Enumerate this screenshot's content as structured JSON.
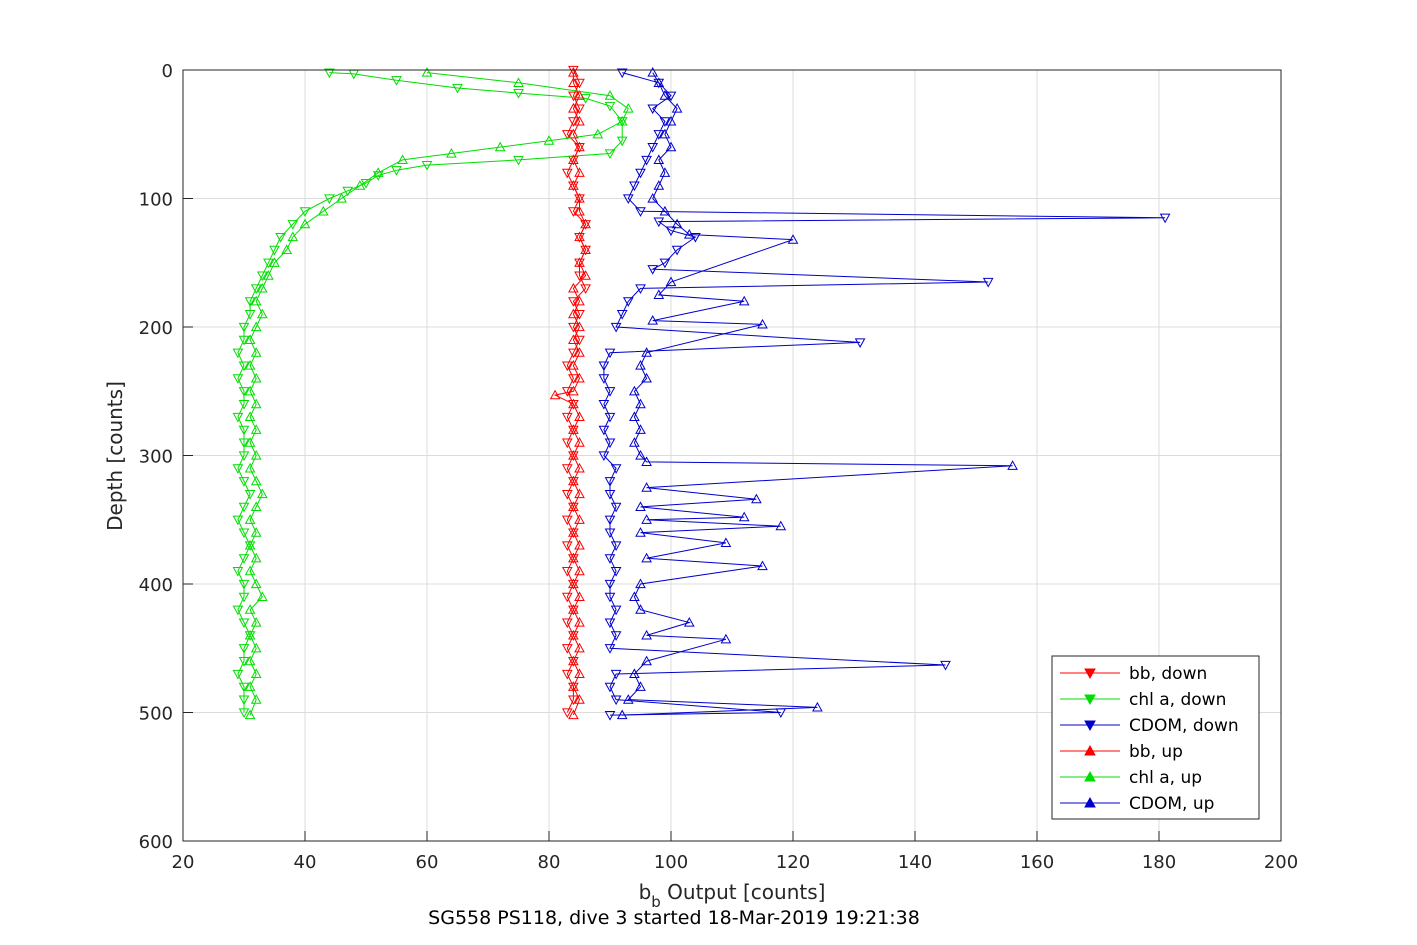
{
  "chart_data": {
    "type": "line",
    "title": "",
    "caption": "SG558 PS118, dive 3 started 18-Mar-2019 19:21:38",
    "xlabel_main": "b",
    "xlabel_sub": "b",
    "xlabel_rest": " Output [counts]",
    "ylabel": "Depth [counts]",
    "xlim": [
      20,
      200
    ],
    "ylim": [
      0,
      600
    ],
    "y_reversed": true,
    "grid": true,
    "xticks": [
      "20",
      "40",
      "60",
      "80",
      "100",
      "120",
      "140",
      "160",
      "180",
      "200"
    ],
    "yticks": [
      "0",
      "100",
      "200",
      "300",
      "400",
      "500",
      "600"
    ],
    "legend_position": "bottom-right",
    "series": [
      {
        "name": "bb, down",
        "color": "#ff0000",
        "marker": "triangle-down",
        "points": [
          [
            84,
            0
          ],
          [
            85,
            10
          ],
          [
            84,
            20
          ],
          [
            85,
            30
          ],
          [
            84,
            40
          ],
          [
            83,
            50
          ],
          [
            85,
            60
          ],
          [
            84,
            70
          ],
          [
            83,
            80
          ],
          [
            84,
            90
          ],
          [
            85,
            100
          ],
          [
            84,
            110
          ],
          [
            86,
            120
          ],
          [
            85,
            130
          ],
          [
            86,
            140
          ],
          [
            85,
            150
          ],
          [
            85,
            160
          ],
          [
            86,
            170
          ],
          [
            84,
            180
          ],
          [
            85,
            190
          ],
          [
            84,
            200
          ],
          [
            85,
            210
          ],
          [
            84,
            220
          ],
          [
            83,
            230
          ],
          [
            84,
            240
          ],
          [
            83,
            250
          ],
          [
            84,
            260
          ],
          [
            83,
            270
          ],
          [
            84,
            280
          ],
          [
            83,
            290
          ],
          [
            84,
            300
          ],
          [
            83,
            310
          ],
          [
            84,
            320
          ],
          [
            83,
            330
          ],
          [
            84,
            340
          ],
          [
            83,
            350
          ],
          [
            84,
            360
          ],
          [
            83,
            370
          ],
          [
            84,
            380
          ],
          [
            83,
            390
          ],
          [
            84,
            400
          ],
          [
            83,
            410
          ],
          [
            84,
            420
          ],
          [
            83,
            430
          ],
          [
            84,
            440
          ],
          [
            83,
            450
          ],
          [
            84,
            460
          ],
          [
            83,
            470
          ],
          [
            84,
            480
          ],
          [
            84,
            490
          ],
          [
            83,
            500
          ]
        ]
      },
      {
        "name": "chl a, down",
        "color": "#00dd00",
        "marker": "triangle-down",
        "points": [
          [
            44,
            2
          ],
          [
            48,
            3
          ],
          [
            55,
            8
          ],
          [
            65,
            14
          ],
          [
            75,
            18
          ],
          [
            86,
            22
          ],
          [
            90,
            28
          ],
          [
            92,
            40
          ],
          [
            92,
            55
          ],
          [
            90,
            65
          ],
          [
            75,
            70
          ],
          [
            60,
            74
          ],
          [
            55,
            78
          ],
          [
            52,
            82
          ],
          [
            50,
            88
          ],
          [
            47,
            94
          ],
          [
            44,
            100
          ],
          [
            40,
            110
          ],
          [
            38,
            120
          ],
          [
            36,
            130
          ],
          [
            35,
            140
          ],
          [
            34,
            150
          ],
          [
            33,
            160
          ],
          [
            32,
            170
          ],
          [
            31,
            180
          ],
          [
            31,
            190
          ],
          [
            30,
            200
          ],
          [
            30,
            210
          ],
          [
            29,
            220
          ],
          [
            30,
            230
          ],
          [
            29,
            240
          ],
          [
            30,
            250
          ],
          [
            30,
            260
          ],
          [
            29,
            270
          ],
          [
            30,
            280
          ],
          [
            30,
            290
          ],
          [
            30,
            300
          ],
          [
            29,
            310
          ],
          [
            30,
            320
          ],
          [
            31,
            330
          ],
          [
            30,
            340
          ],
          [
            29,
            350
          ],
          [
            30,
            360
          ],
          [
            31,
            370
          ],
          [
            30,
            380
          ],
          [
            29,
            390
          ],
          [
            30,
            400
          ],
          [
            30,
            410
          ],
          [
            29,
            420
          ],
          [
            30,
            430
          ],
          [
            31,
            440
          ],
          [
            30,
            450
          ],
          [
            30,
            460
          ],
          [
            29,
            470
          ],
          [
            30,
            480
          ],
          [
            30,
            490
          ],
          [
            30,
            500
          ]
        ]
      },
      {
        "name": "CDOM, down",
        "color": "#0000cc",
        "marker": "triangle-down",
        "points": [
          [
            92,
            2
          ],
          [
            98,
            10
          ],
          [
            100,
            20
          ],
          [
            97,
            30
          ],
          [
            99,
            40
          ],
          [
            98,
            50
          ],
          [
            97,
            60
          ],
          [
            96,
            70
          ],
          [
            95,
            80
          ],
          [
            94,
            90
          ],
          [
            93,
            100
          ],
          [
            95,
            110
          ],
          [
            181,
            115
          ],
          [
            98,
            118
          ],
          [
            100,
            125
          ],
          [
            104,
            130
          ],
          [
            101,
            140
          ],
          [
            99,
            150
          ],
          [
            97,
            155
          ],
          [
            152,
            165
          ],
          [
            95,
            170
          ],
          [
            93,
            180
          ],
          [
            92,
            190
          ],
          [
            91,
            200
          ],
          [
            131,
            212
          ],
          [
            90,
            220
          ],
          [
            89,
            230
          ],
          [
            89,
            240
          ],
          [
            90,
            250
          ],
          [
            89,
            260
          ],
          [
            90,
            270
          ],
          [
            89,
            280
          ],
          [
            90,
            290
          ],
          [
            89,
            300
          ],
          [
            91,
            310
          ],
          [
            90,
            320
          ],
          [
            90,
            330
          ],
          [
            91,
            340
          ],
          [
            90,
            350
          ],
          [
            90,
            360
          ],
          [
            91,
            370
          ],
          [
            90,
            380
          ],
          [
            91,
            390
          ],
          [
            90,
            400
          ],
          [
            90,
            410
          ],
          [
            91,
            420
          ],
          [
            90,
            430
          ],
          [
            91,
            440
          ],
          [
            90,
            450
          ],
          [
            145,
            463
          ],
          [
            91,
            470
          ],
          [
            90,
            480
          ],
          [
            91,
            490
          ],
          [
            118,
            500
          ],
          [
            90,
            502
          ]
        ]
      },
      {
        "name": "bb, up",
        "color": "#ff0000",
        "marker": "triangle-up",
        "points": [
          [
            84,
            502
          ],
          [
            85,
            490
          ],
          [
            84,
            480
          ],
          [
            85,
            470
          ],
          [
            84,
            460
          ],
          [
            85,
            450
          ],
          [
            84,
            440
          ],
          [
            85,
            430
          ],
          [
            84,
            420
          ],
          [
            85,
            410
          ],
          [
            84,
            400
          ],
          [
            85,
            390
          ],
          [
            84,
            380
          ],
          [
            85,
            370
          ],
          [
            84,
            360
          ],
          [
            85,
            350
          ],
          [
            84,
            340
          ],
          [
            85,
            330
          ],
          [
            84,
            320
          ],
          [
            85,
            310
          ],
          [
            84,
            300
          ],
          [
            85,
            290
          ],
          [
            84,
            280
          ],
          [
            85,
            270
          ],
          [
            84,
            260
          ],
          [
            81,
            253
          ],
          [
            84,
            250
          ],
          [
            85,
            240
          ],
          [
            84,
            230
          ],
          [
            85,
            220
          ],
          [
            84,
            210
          ],
          [
            85,
            200
          ],
          [
            84,
            190
          ],
          [
            85,
            180
          ],
          [
            84,
            170
          ],
          [
            86,
            160
          ],
          [
            85,
            150
          ],
          [
            86,
            140
          ],
          [
            85,
            130
          ],
          [
            86,
            120
          ],
          [
            85,
            110
          ],
          [
            85,
            100
          ],
          [
            84,
            90
          ],
          [
            85,
            80
          ],
          [
            84,
            70
          ],
          [
            85,
            60
          ],
          [
            84,
            50
          ],
          [
            85,
            40
          ],
          [
            84,
            30
          ],
          [
            85,
            20
          ],
          [
            84,
            10
          ],
          [
            84,
            2
          ]
        ]
      },
      {
        "name": "chl a, up",
        "color": "#00dd00",
        "marker": "triangle-up",
        "points": [
          [
            31,
            502
          ],
          [
            32,
            490
          ],
          [
            31,
            480
          ],
          [
            32,
            470
          ],
          [
            31,
            460
          ],
          [
            32,
            450
          ],
          [
            31,
            440
          ],
          [
            32,
            430
          ],
          [
            31,
            420
          ],
          [
            33,
            410
          ],
          [
            32,
            400
          ],
          [
            31,
            390
          ],
          [
            32,
            380
          ],
          [
            31,
            370
          ],
          [
            32,
            360
          ],
          [
            31,
            350
          ],
          [
            32,
            340
          ],
          [
            33,
            330
          ],
          [
            32,
            320
          ],
          [
            31,
            310
          ],
          [
            32,
            300
          ],
          [
            31,
            290
          ],
          [
            32,
            280
          ],
          [
            31,
            270
          ],
          [
            32,
            260
          ],
          [
            31,
            250
          ],
          [
            32,
            240
          ],
          [
            31,
            230
          ],
          [
            32,
            220
          ],
          [
            31,
            210
          ],
          [
            32,
            200
          ],
          [
            33,
            190
          ],
          [
            32,
            180
          ],
          [
            33,
            170
          ],
          [
            34,
            160
          ],
          [
            35,
            150
          ],
          [
            37,
            140
          ],
          [
            38,
            130
          ],
          [
            40,
            120
          ],
          [
            43,
            110
          ],
          [
            46,
            100
          ],
          [
            49,
            90
          ],
          [
            52,
            80
          ],
          [
            56,
            70
          ],
          [
            64,
            65
          ],
          [
            72,
            60
          ],
          [
            80,
            55
          ],
          [
            88,
            50
          ],
          [
            92,
            40
          ],
          [
            93,
            30
          ],
          [
            90,
            20
          ],
          [
            75,
            10
          ],
          [
            60,
            2
          ]
        ]
      },
      {
        "name": "CDOM, up",
        "color": "#0000cc",
        "marker": "triangle-up",
        "points": [
          [
            92,
            502
          ],
          [
            124,
            496
          ],
          [
            93,
            490
          ],
          [
            95,
            480
          ],
          [
            94,
            470
          ],
          [
            96,
            460
          ],
          [
            109,
            443
          ],
          [
            96,
            440
          ],
          [
            103,
            430
          ],
          [
            95,
            420
          ],
          [
            94,
            410
          ],
          [
            95,
            400
          ],
          [
            115,
            386
          ],
          [
            96,
            380
          ],
          [
            109,
            368
          ],
          [
            95,
            360
          ],
          [
            118,
            355
          ],
          [
            96,
            350
          ],
          [
            112,
            348
          ],
          [
            95,
            340
          ],
          [
            114,
            334
          ],
          [
            96,
            325
          ],
          [
            156,
            308
          ],
          [
            96,
            305
          ],
          [
            95,
            300
          ],
          [
            94,
            290
          ],
          [
            95,
            280
          ],
          [
            94,
            270
          ],
          [
            95,
            260
          ],
          [
            94,
            250
          ],
          [
            96,
            240
          ],
          [
            95,
            230
          ],
          [
            96,
            220
          ],
          [
            115,
            198
          ],
          [
            97,
            195
          ],
          [
            112,
            180
          ],
          [
            98,
            175
          ],
          [
            100,
            165
          ],
          [
            120,
            132
          ],
          [
            103,
            128
          ],
          [
            101,
            120
          ],
          [
            99,
            110
          ],
          [
            97,
            100
          ],
          [
            98,
            90
          ],
          [
            99,
            80
          ],
          [
            98,
            70
          ],
          [
            100,
            60
          ],
          [
            99,
            50
          ],
          [
            100,
            40
          ],
          [
            101,
            30
          ],
          [
            99,
            20
          ],
          [
            98,
            10
          ],
          [
            97,
            2
          ]
        ]
      }
    ]
  }
}
